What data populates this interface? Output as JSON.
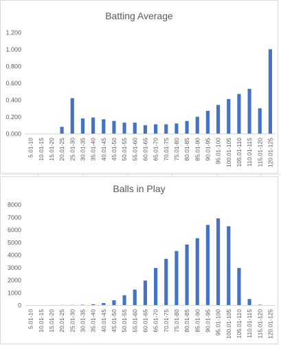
{
  "chart_data": [
    {
      "type": "bar",
      "title": "Batting Average",
      "categories": [
        "5.01-10",
        "10.01-15",
        "15.01-20",
        "20.01-25",
        "25.01-30",
        "30.01-35",
        "35.01-40",
        "40.01-45",
        "45.01-50",
        "50.01-55",
        "55.01-60",
        "60.01-65",
        "65.01-70",
        "70.01-75",
        "75.01-80",
        "80.01-85",
        "85.01-90",
        "90.01-95",
        "95.01-100",
        "100.01-105",
        "105.01-110",
        "110.01-115",
        "115.01-120",
        "120.01-125"
      ],
      "values": [
        0,
        0,
        0,
        0.08,
        0.42,
        0.18,
        0.19,
        0.17,
        0.15,
        0.13,
        0.13,
        0.1,
        0.11,
        0.11,
        0.12,
        0.15,
        0.2,
        0.27,
        0.34,
        0.41,
        0.47,
        0.53,
        0.3,
        1.0
      ],
      "ylim": [
        0,
        1.2
      ],
      "yticks": [
        "0.000",
        "0.200",
        "0.400",
        "0.600",
        "0.800",
        "1.000",
        "1.200"
      ],
      "ytick_values": [
        0,
        0.2,
        0.4,
        0.6,
        0.8,
        1.0,
        1.2
      ],
      "grid": false,
      "bar_color": "#4472c4"
    },
    {
      "type": "bar",
      "title": "Balls in Play",
      "categories": [
        "5.01-10",
        "10.01-15",
        "15.01-20",
        "20.01-25",
        "25.01-30",
        "30.01-35",
        "35.01-40",
        "40.01-45",
        "45.01-50",
        "50.01-55",
        "55.01-60",
        "60.01-65",
        "65.01-70",
        "70.01-75",
        "75.01-80",
        "80.01-85",
        "85.01-90",
        "90.01-95",
        "95.01-100",
        "100.01-105",
        "105.01-110",
        "110.01-115",
        "115.01-120",
        "120.01-125"
      ],
      "values": [
        2,
        3,
        5,
        8,
        12,
        25,
        60,
        160,
        380,
        780,
        1230,
        1950,
        2950,
        3680,
        4300,
        4820,
        5320,
        6380,
        6900,
        6270,
        2950,
        480,
        30,
        3
      ],
      "ylim": [
        0,
        8000
      ],
      "yticks": [
        "0",
        "1000",
        "2000",
        "3000",
        "4000",
        "5000",
        "6000",
        "7000",
        "8000"
      ],
      "ytick_values": [
        0,
        1000,
        2000,
        3000,
        4000,
        5000,
        6000,
        7000,
        8000
      ],
      "grid": false,
      "bar_color": "#4472c4"
    }
  ]
}
